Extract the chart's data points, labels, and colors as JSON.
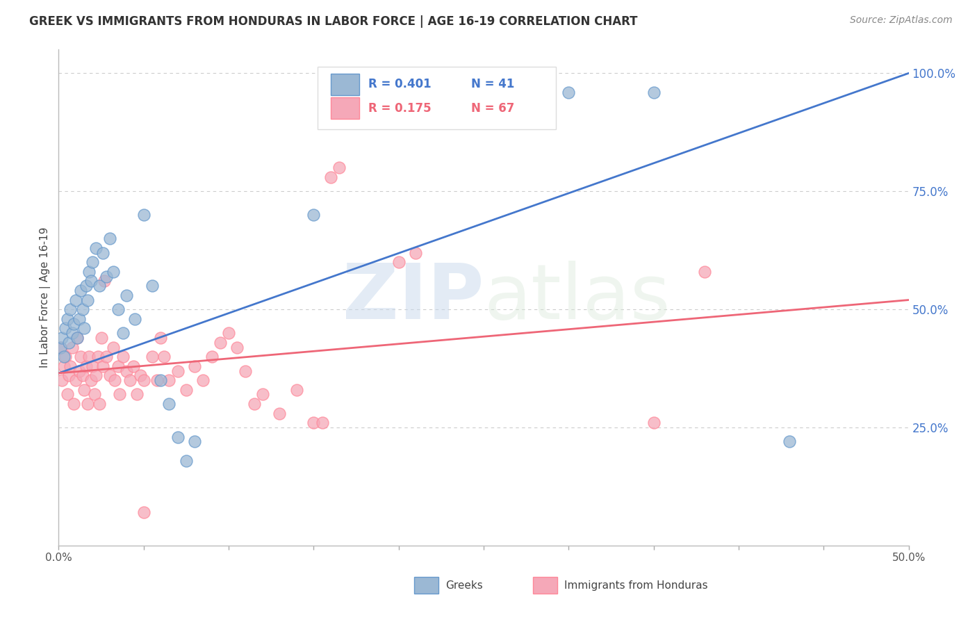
{
  "title": "GREEK VS IMMIGRANTS FROM HONDURAS IN LABOR FORCE | AGE 16-19 CORRELATION CHART",
  "source": "Source: ZipAtlas.com",
  "ylabel": "In Labor Force | Age 16-19",
  "xlim": [
    0.0,
    0.5
  ],
  "ylim": [
    0.0,
    1.05
  ],
  "xticks": [
    0.0,
    0.05,
    0.1,
    0.15,
    0.2,
    0.25,
    0.3,
    0.35,
    0.4,
    0.45,
    0.5
  ],
  "xticklabels_show": [
    "0.0%",
    "",
    "",
    "",
    "",
    "",
    "",
    "",
    "",
    "",
    "50.0%"
  ],
  "yticks_right": [
    0.25,
    0.5,
    0.75,
    1.0
  ],
  "yticklabels_right": [
    "25.0%",
    "50.0%",
    "75.0%",
    "100.0%"
  ],
  "legend_blue_R": "R = 0.401",
  "legend_blue_N": "N = 41",
  "legend_pink_R": "R = 0.175",
  "legend_pink_N": "N = 67",
  "blue_fill_color": "#9BB8D4",
  "pink_fill_color": "#F5A8B8",
  "blue_edge_color": "#6699CC",
  "pink_edge_color": "#FF8899",
  "blue_line_color": "#4477CC",
  "pink_line_color": "#EE6677",
  "watermark_zip": "ZIP",
  "watermark_atlas": "atlas",
  "background_color": "#FFFFFF",
  "grid_color": "#CCCCCC",
  "title_color": "#333333",
  "axis_label_color": "#444444",
  "right_tick_color": "#4477CC",
  "blue_scatter": [
    [
      0.001,
      0.42
    ],
    [
      0.002,
      0.44
    ],
    [
      0.003,
      0.4
    ],
    [
      0.004,
      0.46
    ],
    [
      0.005,
      0.48
    ],
    [
      0.006,
      0.43
    ],
    [
      0.007,
      0.5
    ],
    [
      0.008,
      0.45
    ],
    [
      0.009,
      0.47
    ],
    [
      0.01,
      0.52
    ],
    [
      0.011,
      0.44
    ],
    [
      0.012,
      0.48
    ],
    [
      0.013,
      0.54
    ],
    [
      0.014,
      0.5
    ],
    [
      0.015,
      0.46
    ],
    [
      0.016,
      0.55
    ],
    [
      0.017,
      0.52
    ],
    [
      0.018,
      0.58
    ],
    [
      0.019,
      0.56
    ],
    [
      0.02,
      0.6
    ],
    [
      0.022,
      0.63
    ],
    [
      0.024,
      0.55
    ],
    [
      0.026,
      0.62
    ],
    [
      0.028,
      0.57
    ],
    [
      0.03,
      0.65
    ],
    [
      0.032,
      0.58
    ],
    [
      0.035,
      0.5
    ],
    [
      0.038,
      0.45
    ],
    [
      0.04,
      0.53
    ],
    [
      0.045,
      0.48
    ],
    [
      0.05,
      0.7
    ],
    [
      0.055,
      0.55
    ],
    [
      0.06,
      0.35
    ],
    [
      0.065,
      0.3
    ],
    [
      0.07,
      0.23
    ],
    [
      0.075,
      0.18
    ],
    [
      0.08,
      0.22
    ],
    [
      0.15,
      0.7
    ],
    [
      0.3,
      0.96
    ],
    [
      0.35,
      0.96
    ],
    [
      0.43,
      0.22
    ]
  ],
  "pink_scatter": [
    [
      0.001,
      0.42
    ],
    [
      0.002,
      0.35
    ],
    [
      0.003,
      0.38
    ],
    [
      0.004,
      0.4
    ],
    [
      0.005,
      0.32
    ],
    [
      0.006,
      0.36
    ],
    [
      0.007,
      0.38
    ],
    [
      0.008,
      0.42
    ],
    [
      0.009,
      0.3
    ],
    [
      0.01,
      0.35
    ],
    [
      0.011,
      0.44
    ],
    [
      0.012,
      0.37
    ],
    [
      0.013,
      0.4
    ],
    [
      0.014,
      0.36
    ],
    [
      0.015,
      0.33
    ],
    [
      0.016,
      0.38
    ],
    [
      0.017,
      0.3
    ],
    [
      0.018,
      0.4
    ],
    [
      0.019,
      0.35
    ],
    [
      0.02,
      0.38
    ],
    [
      0.021,
      0.32
    ],
    [
      0.022,
      0.36
    ],
    [
      0.023,
      0.4
    ],
    [
      0.024,
      0.3
    ],
    [
      0.025,
      0.44
    ],
    [
      0.026,
      0.38
    ],
    [
      0.027,
      0.56
    ],
    [
      0.028,
      0.4
    ],
    [
      0.03,
      0.36
    ],
    [
      0.032,
      0.42
    ],
    [
      0.033,
      0.35
    ],
    [
      0.035,
      0.38
    ],
    [
      0.036,
      0.32
    ],
    [
      0.038,
      0.4
    ],
    [
      0.04,
      0.37
    ],
    [
      0.042,
      0.35
    ],
    [
      0.044,
      0.38
    ],
    [
      0.046,
      0.32
    ],
    [
      0.048,
      0.36
    ],
    [
      0.05,
      0.35
    ],
    [
      0.055,
      0.4
    ],
    [
      0.058,
      0.35
    ],
    [
      0.06,
      0.44
    ],
    [
      0.062,
      0.4
    ],
    [
      0.065,
      0.35
    ],
    [
      0.07,
      0.37
    ],
    [
      0.075,
      0.33
    ],
    [
      0.08,
      0.38
    ],
    [
      0.085,
      0.35
    ],
    [
      0.09,
      0.4
    ],
    [
      0.095,
      0.43
    ],
    [
      0.1,
      0.45
    ],
    [
      0.105,
      0.42
    ],
    [
      0.11,
      0.37
    ],
    [
      0.115,
      0.3
    ],
    [
      0.12,
      0.32
    ],
    [
      0.13,
      0.28
    ],
    [
      0.14,
      0.33
    ],
    [
      0.15,
      0.26
    ],
    [
      0.155,
      0.26
    ],
    [
      0.16,
      0.78
    ],
    [
      0.165,
      0.8
    ],
    [
      0.2,
      0.6
    ],
    [
      0.21,
      0.62
    ],
    [
      0.35,
      0.26
    ],
    [
      0.38,
      0.58
    ],
    [
      0.05,
      0.07
    ]
  ],
  "blue_line": [
    [
      0.0,
      0.365
    ],
    [
      0.5,
      1.0
    ]
  ],
  "pink_line": [
    [
      0.0,
      0.365
    ],
    [
      0.5,
      0.52
    ]
  ]
}
